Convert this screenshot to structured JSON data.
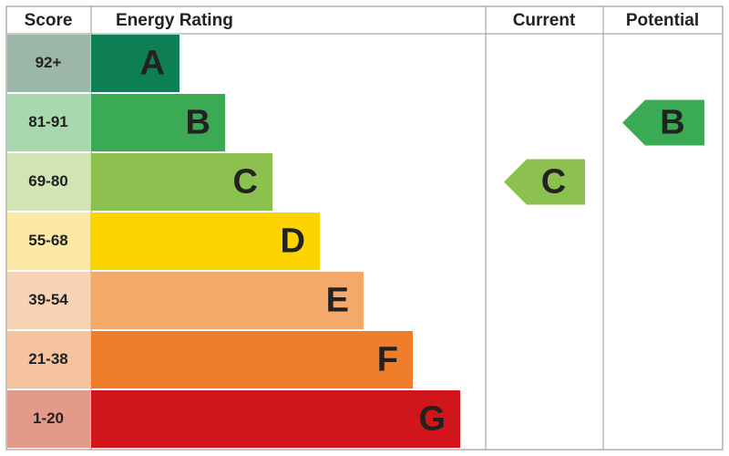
{
  "header": {
    "score": "Score",
    "rating": "Energy Rating",
    "current": "Current",
    "potential": "Potential"
  },
  "rows": [
    {
      "score": "92+",
      "rating": "A"
    },
    {
      "score": "81-91",
      "rating": "B"
    },
    {
      "score": "69-80",
      "rating": "C"
    },
    {
      "score": "55-68",
      "rating": "D"
    },
    {
      "score": "39-54",
      "rating": "E"
    },
    {
      "score": "21-38",
      "rating": "F"
    },
    {
      "score": "1-20",
      "rating": "G"
    }
  ],
  "current": {
    "rating": "C"
  },
  "potential": {
    "rating": "B"
  }
}
